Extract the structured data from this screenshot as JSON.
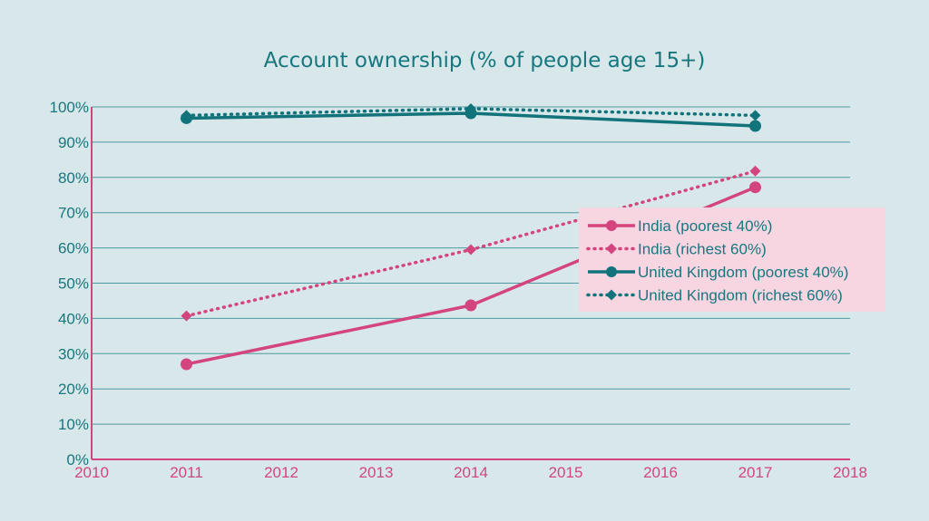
{
  "chart_data": {
    "type": "line",
    "title": "Account ownership (% of people age 15+)",
    "xlabel": "",
    "ylabel": "",
    "xlim": [
      2010,
      2018
    ],
    "ylim": [
      0,
      100
    ],
    "x_ticks": [
      "2010",
      "2011",
      "2012",
      "2013",
      "2014",
      "2015",
      "2016",
      "2017",
      "2018"
    ],
    "y_ticks": [
      "0%",
      "10%",
      "20%",
      "30%",
      "40%",
      "50%",
      "60%",
      "70%",
      "80%",
      "90%",
      "100%"
    ],
    "grid": true,
    "legend_position": "right",
    "x": [
      2011,
      2014,
      2017
    ],
    "series": [
      {
        "name": "India (poorest 40%)",
        "values": [
          27.0,
          43.7,
          77.2
        ],
        "color": "#d4457e",
        "style": "solid",
        "marker": "circle"
      },
      {
        "name": "India (richest 60%)",
        "values": [
          40.7,
          59.5,
          81.8
        ],
        "color": "#d4457e",
        "style": "dotted",
        "marker": "diamond"
      },
      {
        "name": "United Kingdom (poorest 40%)",
        "values": [
          96.8,
          98.2,
          94.6
        ],
        "color": "#12737b",
        "style": "solid",
        "marker": "circle"
      },
      {
        "name": "United Kingdom (richest 60%)",
        "values": [
          97.6,
          99.5,
          97.6
        ],
        "color": "#12737b",
        "style": "dotted",
        "marker": "diamond"
      }
    ],
    "colors": {
      "background": "#d8e8ea",
      "axis_x": "#d4457e",
      "axis_y": "#d4457e",
      "legend_bg": "#f7d6e2",
      "grid": "#4f9aa2"
    }
  }
}
